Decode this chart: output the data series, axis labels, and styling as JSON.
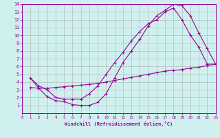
{
  "xlabel": "Windchill (Refroidissement éolien,°C)",
  "bg_color": "#cff0ee",
  "grid_color": "#b0b0b0",
  "line_color": "#990099",
  "xlim": [
    0,
    23
  ],
  "ylim": [
    0,
    14
  ],
  "xticks": [
    0,
    1,
    2,
    3,
    4,
    5,
    6,
    7,
    8,
    9,
    10,
    11,
    12,
    13,
    14,
    15,
    16,
    17,
    18,
    19,
    20,
    21,
    22,
    23
  ],
  "yticks": [
    1,
    2,
    3,
    4,
    5,
    6,
    7,
    8,
    9,
    10,
    11,
    12,
    13,
    14
  ],
  "line1_x": [
    1,
    2,
    3,
    4,
    5,
    6,
    7,
    8,
    9,
    10,
    11,
    12,
    13,
    14,
    15,
    16,
    17,
    18,
    19,
    20,
    21,
    22,
    23
  ],
  "line1_y": [
    4.5,
    3.2,
    2.1,
    1.6,
    1.5,
    1.1,
    1.0,
    1.0,
    1.4,
    2.5,
    4.5,
    6.5,
    8.0,
    9.5,
    11.2,
    12.5,
    13.2,
    14.0,
    13.8,
    12.5,
    10.3,
    8.3,
    6.3
  ],
  "line2_x": [
    1,
    2,
    3,
    4,
    5,
    6,
    7,
    8,
    9,
    10,
    11,
    12,
    13,
    14,
    15,
    16,
    17,
    18,
    19,
    20,
    21,
    22,
    23
  ],
  "line2_y": [
    4.5,
    3.5,
    3.0,
    2.0,
    1.8,
    1.8,
    1.8,
    2.5,
    3.5,
    5.0,
    6.5,
    7.8,
    9.3,
    10.5,
    11.5,
    12.0,
    13.0,
    13.5,
    12.0,
    10.0,
    8.5,
    6.3,
    6.3
  ],
  "line3_x": [
    1,
    2,
    3,
    4,
    5,
    6,
    7,
    8,
    9,
    10,
    11,
    12,
    13,
    14,
    15,
    16,
    17,
    18,
    19,
    20,
    21,
    22,
    23
  ],
  "line3_y": [
    3.3,
    3.2,
    3.2,
    3.3,
    3.4,
    3.5,
    3.6,
    3.7,
    3.8,
    4.0,
    4.2,
    4.4,
    4.6,
    4.8,
    5.0,
    5.2,
    5.4,
    5.5,
    5.6,
    5.8,
    5.9,
    6.1,
    6.3
  ]
}
